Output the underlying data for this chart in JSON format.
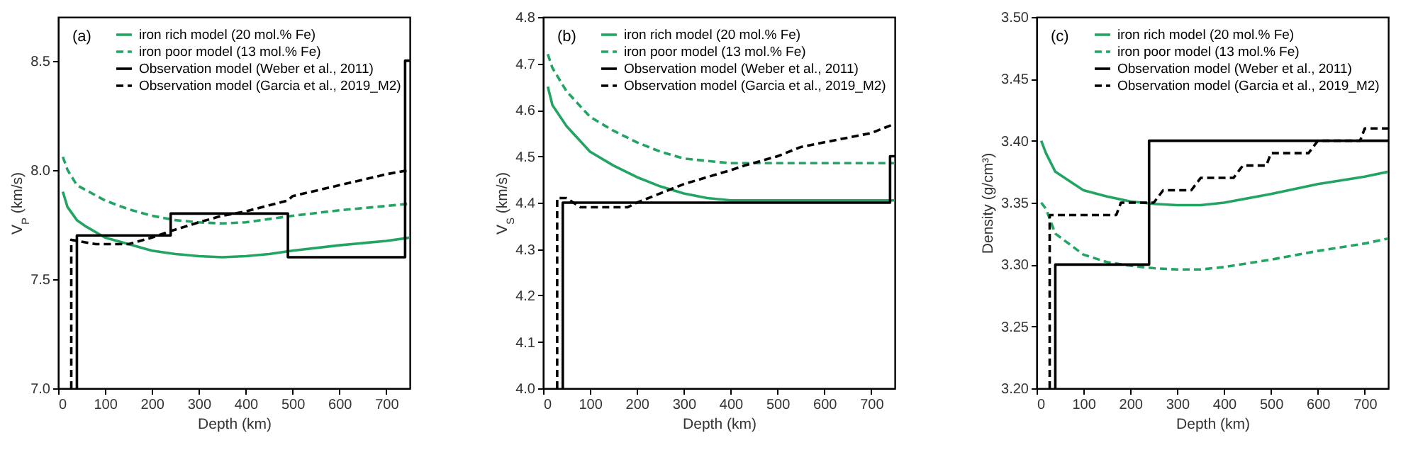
{
  "chart_data": [
    {
      "type": "line",
      "xlabel": "Depth (km)",
      "ylabel": "V$_{P}$ (km/s)",
      "annotations": [
        "(a)"
      ],
      "legend": "top right",
      "xlim": [
        0,
        750
      ],
      "xticks": [
        0,
        100,
        200,
        300,
        400,
        500,
        600,
        700
      ],
      "ylim": [
        7,
        8.7
      ],
      "yticks": [
        {
          "value": 7,
          "label": "7.0"
        },
        7.5,
        {
          "value": 8,
          "label": "8.0"
        },
        8.5
      ],
      "series": [
        {
          "name": "iron rich model (20 mol.% Fe)",
          "color": "#22a462",
          "line_style": "solid",
          "x": [
            10,
            20,
            40,
            60,
            100,
            150,
            200,
            250,
            300,
            350,
            400,
            450,
            500,
            600,
            700,
            750
          ],
          "values": [
            7.9,
            7.83,
            7.77,
            7.74,
            7.69,
            7.66,
            7.63,
            7.615,
            7.605,
            7.6,
            7.605,
            7.615,
            7.63,
            7.655,
            7.675,
            7.69
          ]
        },
        {
          "name": "iron poor model (13 mol.% Fe)",
          "color": "#22a462",
          "line_style": "dashed",
          "x": [
            10,
            20,
            40,
            100,
            150,
            200,
            250,
            300,
            350,
            400,
            450,
            500,
            600,
            700,
            750
          ],
          "values": [
            8.06,
            8.0,
            7.93,
            7.86,
            7.82,
            7.79,
            7.77,
            7.76,
            7.755,
            7.76,
            7.775,
            7.79,
            7.815,
            7.835,
            7.845
          ]
        },
        {
          "name": "Observation model (Weber et al., 2011)",
          "color": "#000000",
          "line_style": "solid",
          "x": [
            40,
            40,
            240,
            240,
            490,
            490,
            740,
            740,
            750
          ],
          "values": [
            7.0,
            7.7,
            7.7,
            7.8,
            7.8,
            7.6,
            7.6,
            8.5,
            8.5
          ]
        },
        {
          "name": "Observation model (Garcia et al., 2019_M2)",
          "color": "#000000",
          "line_style": "dashed",
          "x": [
            28,
            28,
            80,
            150,
            200,
            240,
            300,
            350,
            400,
            490,
            500,
            600,
            700,
            750
          ],
          "values": [
            7.0,
            7.68,
            7.66,
            7.66,
            7.69,
            7.72,
            7.76,
            7.79,
            7.81,
            7.86,
            7.88,
            7.93,
            7.98,
            8.0
          ]
        }
      ]
    },
    {
      "type": "line",
      "xlabel": "Depth (km)",
      "ylabel": "V$_{S}$ (km/s)",
      "annotations": [
        "(b)"
      ],
      "legend": "top right",
      "xlim": [
        0,
        750
      ],
      "xticks": [
        0,
        100,
        200,
        300,
        400,
        500,
        600,
        700
      ],
      "ylim": [
        4,
        4.8
      ],
      "yticks": [
        {
          "value": 4,
          "label": "4.0"
        },
        4.1,
        4.2,
        4.3,
        4.4,
        4.5,
        4.6,
        4.7,
        4.8
      ],
      "series": [
        {
          "name": "iron rich model (20 mol.% Fe)",
          "color": "#22a462",
          "line_style": "solid",
          "x": [
            10,
            20,
            50,
            100,
            150,
            200,
            250,
            300,
            350,
            400,
            500,
            750
          ],
          "values": [
            4.65,
            4.61,
            4.565,
            4.51,
            4.48,
            4.455,
            4.435,
            4.42,
            4.41,
            4.405,
            4.405,
            4.405
          ]
        },
        {
          "name": "iron poor model (13 mol.% Fe)",
          "color": "#22a462",
          "line_style": "dashed",
          "x": [
            10,
            20,
            50,
            100,
            150,
            200,
            250,
            300,
            350,
            400,
            500,
            750
          ],
          "values": [
            4.72,
            4.69,
            4.64,
            4.585,
            4.555,
            4.53,
            4.51,
            4.495,
            4.49,
            4.485,
            4.485,
            4.485
          ]
        },
        {
          "name": "Observation model (Weber et al., 2011)",
          "color": "#000000",
          "line_style": "solid",
          "x": [
            42,
            42,
            740,
            740,
            750
          ],
          "values": [
            4.0,
            4.4,
            4.4,
            4.5,
            4.5
          ]
        },
        {
          "name": "Observation model (Garcia et al., 2019_M2)",
          "color": "#000000",
          "line_style": "dashed",
          "x": [
            30,
            30,
            50,
            80,
            180,
            200,
            300,
            400,
            430,
            500,
            550,
            600,
            650,
            700,
            750
          ],
          "values": [
            4.0,
            4.41,
            4.41,
            4.39,
            4.39,
            4.4,
            4.44,
            4.47,
            4.48,
            4.5,
            4.52,
            4.53,
            4.54,
            4.55,
            4.57
          ]
        }
      ]
    },
    {
      "type": "line",
      "xlabel": "Depth (km)",
      "ylabel": "Density (g/cm³)",
      "annotations": [
        "(c)"
      ],
      "legend": "top right",
      "xlim": [
        0,
        750
      ],
      "xticks": [
        0,
        100,
        200,
        300,
        400,
        500,
        600,
        700
      ],
      "ylim": [
        3.2,
        3.5
      ],
      "yticks": [
        {
          "value": 3.2,
          "label": "3.20"
        },
        3.25,
        {
          "value": 3.3,
          "label": "3.30"
        },
        3.35,
        {
          "value": 3.4,
          "label": "3.40"
        },
        3.45,
        {
          "value": 3.5,
          "label": "3.50"
        }
      ],
      "series": [
        {
          "name": "iron rich model (20 mol.% Fe)",
          "color": "#22a462",
          "line_style": "solid",
          "x": [
            10,
            20,
            40,
            100,
            150,
            200,
            250,
            300,
            350,
            400,
            500,
            600,
            700,
            750
          ],
          "values": [
            3.4,
            3.39,
            3.375,
            3.36,
            3.355,
            3.351,
            3.349,
            3.348,
            3.348,
            3.35,
            3.357,
            3.365,
            3.371,
            3.375
          ]
        },
        {
          "name": "iron poor model (13 mol.% Fe)",
          "color": "#22a462",
          "line_style": "dashed",
          "x": [
            10,
            20,
            40,
            100,
            150,
            200,
            250,
            300,
            350,
            400,
            500,
            600,
            700,
            750
          ],
          "values": [
            3.35,
            3.345,
            3.325,
            3.308,
            3.302,
            3.299,
            3.297,
            3.296,
            3.296,
            3.298,
            3.304,
            3.311,
            3.317,
            3.321
          ]
        },
        {
          "name": "Observation model (Weber et al., 2011)",
          "color": "#000000",
          "line_style": "solid",
          "x": [
            40,
            40,
            240,
            240,
            750
          ],
          "values": [
            3.2,
            3.3,
            3.3,
            3.4,
            3.4
          ]
        },
        {
          "name": "Observation model (Garcia et al., 2019_M2)",
          "color": "#000000",
          "line_style": "dashed",
          "x": [
            28,
            28,
            170,
            180,
            250,
            270,
            330,
            350,
            420,
            440,
            490,
            500,
            580,
            600,
            690,
            700,
            750
          ],
          "values": [
            3.2,
            3.34,
            3.34,
            3.35,
            3.35,
            3.36,
            3.36,
            3.37,
            3.37,
            3.38,
            3.38,
            3.39,
            3.39,
            3.4,
            3.4,
            3.41,
            3.41
          ]
        }
      ]
    }
  ]
}
